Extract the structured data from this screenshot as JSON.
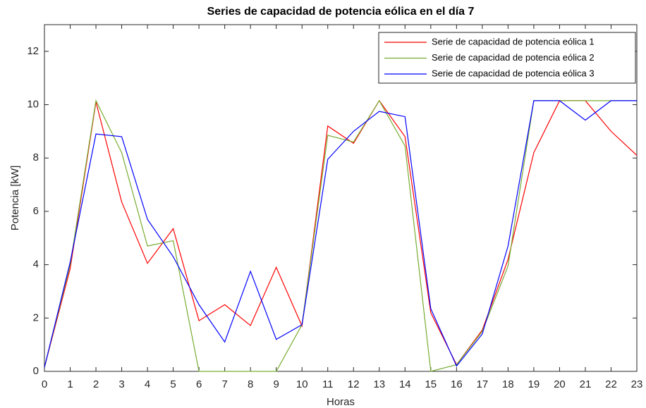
{
  "chart_data": {
    "type": "line",
    "title": "Series de capacidad de potencia eólica en el día 7",
    "xlabel": "Horas",
    "ylabel": "Potencia [kW]",
    "x": [
      0,
      1,
      2,
      3,
      4,
      5,
      6,
      7,
      8,
      9,
      10,
      11,
      12,
      13,
      14,
      15,
      16,
      17,
      18,
      19,
      20,
      21,
      22,
      23
    ],
    "series": [
      {
        "name": "Serie de capacidad de potencia eólica 1",
        "color": "#ff0000",
        "values": [
          0.15,
          3.85,
          10.1,
          6.35,
          4.05,
          5.35,
          1.9,
          2.5,
          1.72,
          3.9,
          1.7,
          9.2,
          8.55,
          10.15,
          8.8,
          2.2,
          0.25,
          1.55,
          4.2,
          8.2,
          10.15,
          10.15,
          9.0,
          8.1
        ]
      },
      {
        "name": "Serie de capacidad de potencia eólica 2",
        "color": "#77ac30",
        "values": [
          0.15,
          4.0,
          10.15,
          8.2,
          4.7,
          4.9,
          0,
          0,
          0,
          0,
          1.75,
          8.85,
          8.6,
          10.15,
          8.45,
          0,
          0.25,
          1.5,
          3.95,
          10.15,
          10.15,
          10.15,
          10.15,
          10.15
        ]
      },
      {
        "name": "Serie de capacidad de potencia eólica 3",
        "color": "#0000ff",
        "values": [
          0.15,
          4.1,
          8.9,
          8.8,
          5.7,
          4.3,
          2.5,
          1.1,
          3.75,
          1.2,
          1.75,
          7.95,
          9.0,
          9.75,
          9.55,
          2.35,
          0.2,
          1.4,
          4.7,
          10.15,
          10.15,
          9.42,
          10.15,
          10.15
        ]
      }
    ],
    "xlim": [
      0,
      23
    ],
    "xticks": [
      0,
      1,
      2,
      3,
      4,
      5,
      6,
      7,
      8,
      9,
      10,
      11,
      12,
      13,
      14,
      15,
      16,
      17,
      18,
      19,
      20,
      21,
      22,
      23
    ],
    "ylim": [
      0,
      13
    ],
    "yticks": [
      0,
      2,
      4,
      6,
      8,
      10,
      12
    ],
    "grid": false,
    "legend": "upper-right"
  }
}
